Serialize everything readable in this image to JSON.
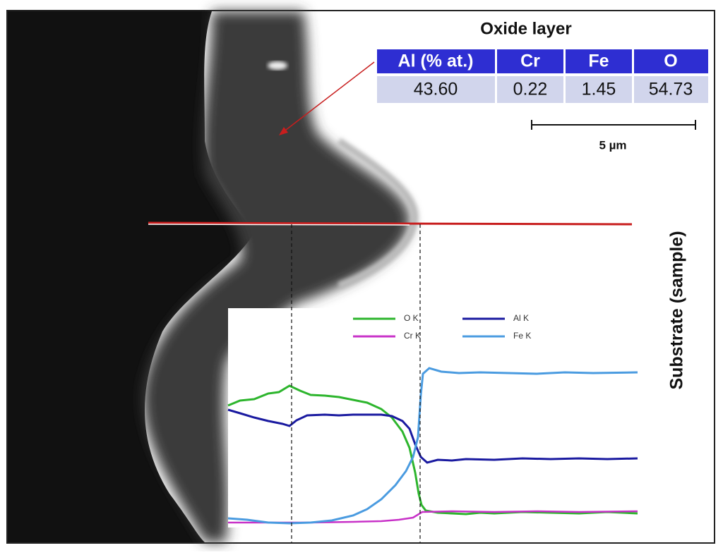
{
  "title": "Oxide layer",
  "table": {
    "header": [
      "Al (% at.)",
      "Cr",
      "Fe",
      "O"
    ],
    "rows": [
      [
        "43.60",
        "0.22",
        "1.45",
        "54.73"
      ]
    ]
  },
  "scale_bar": {
    "label": "5 µm"
  },
  "side_label": "Substrate (sample)",
  "profile": {
    "series": [
      {
        "name": "O K",
        "color": "#2db52d"
      },
      {
        "name": "Al K",
        "color": "#1a1aa0"
      },
      {
        "name": "Cr K",
        "color": "#c832c8"
      },
      {
        "name": "Fe K",
        "color": "#4a9be0"
      }
    ]
  }
}
